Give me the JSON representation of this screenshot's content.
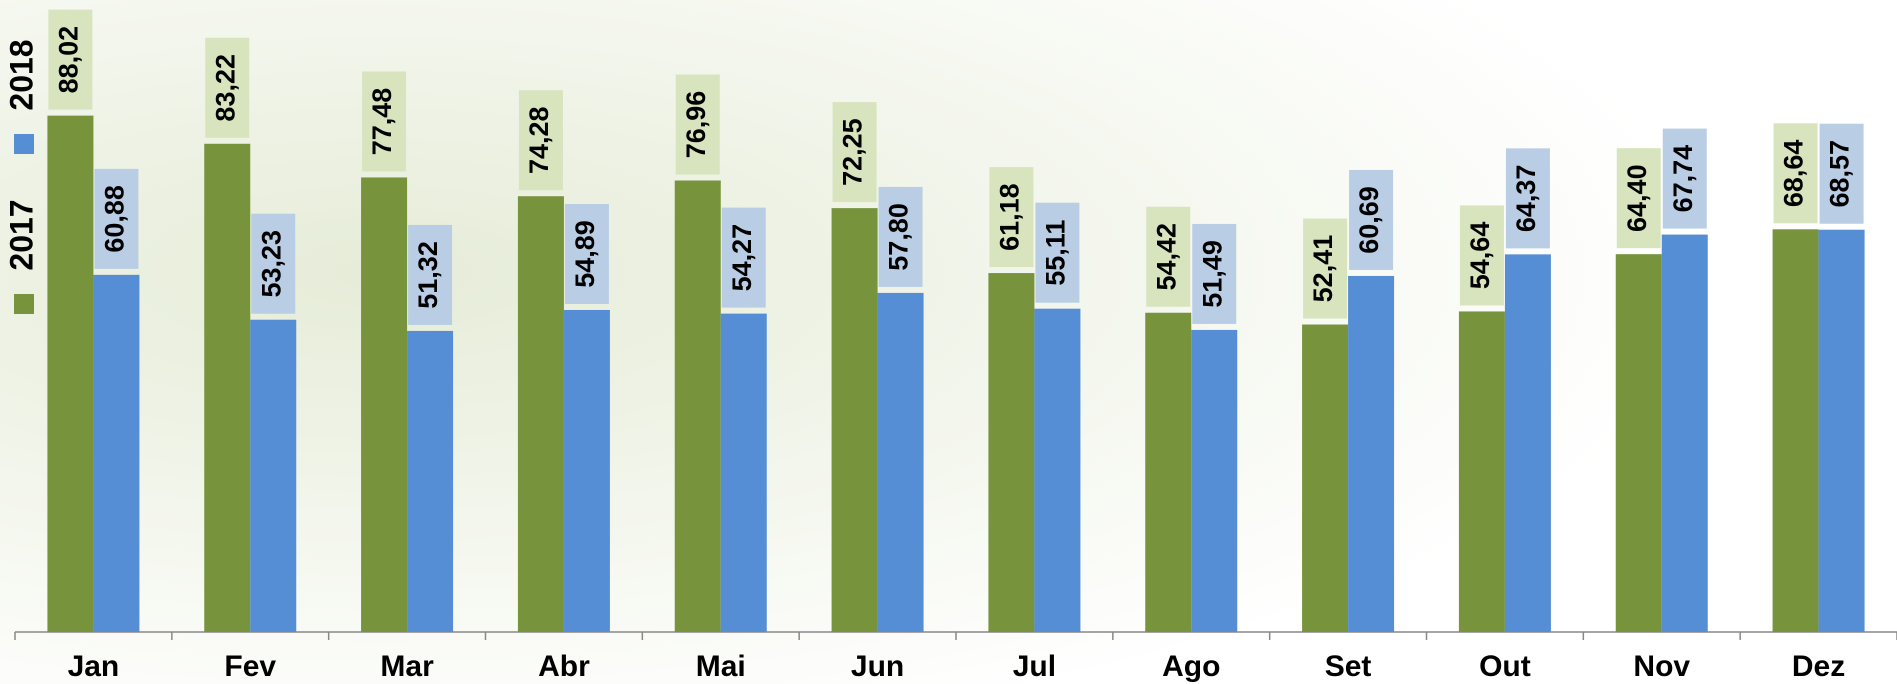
{
  "chart_data": {
    "type": "bar",
    "categories": [
      "Jan",
      "Fev",
      "Mar",
      "Abr",
      "Mai",
      "Jun",
      "Jul",
      "Ago",
      "Set",
      "Out",
      "Nov",
      "Dez"
    ],
    "series": [
      {
        "name": "2017",
        "color": "#77933c",
        "label_color": "#d7e4bd",
        "values": [
          88.02,
          83.22,
          77.48,
          74.28,
          76.96,
          72.25,
          61.18,
          54.42,
          52.41,
          54.64,
          64.4,
          68.64
        ],
        "value_labels": [
          "88,02",
          "83,22",
          "77,48",
          "74,28",
          "76,96",
          "72,25",
          "61,18",
          "54,42",
          "52,41",
          "54,64",
          "64,40",
          "68,64"
        ]
      },
      {
        "name": "2018",
        "color": "#558ed5",
        "label_color": "#b9cde5",
        "values": [
          60.88,
          53.23,
          51.32,
          54.89,
          54.27,
          57.8,
          55.11,
          51.49,
          60.69,
          64.37,
          67.74,
          68.57
        ],
        "value_labels": [
          "60,88",
          "53,23",
          "51,32",
          "54,89",
          "54,27",
          "57,80",
          "55,11",
          "51,49",
          "60,69",
          "64,37",
          "67,74",
          "68,57"
        ]
      }
    ],
    "ylim": [
      0,
      90
    ],
    "legend": "left"
  }
}
